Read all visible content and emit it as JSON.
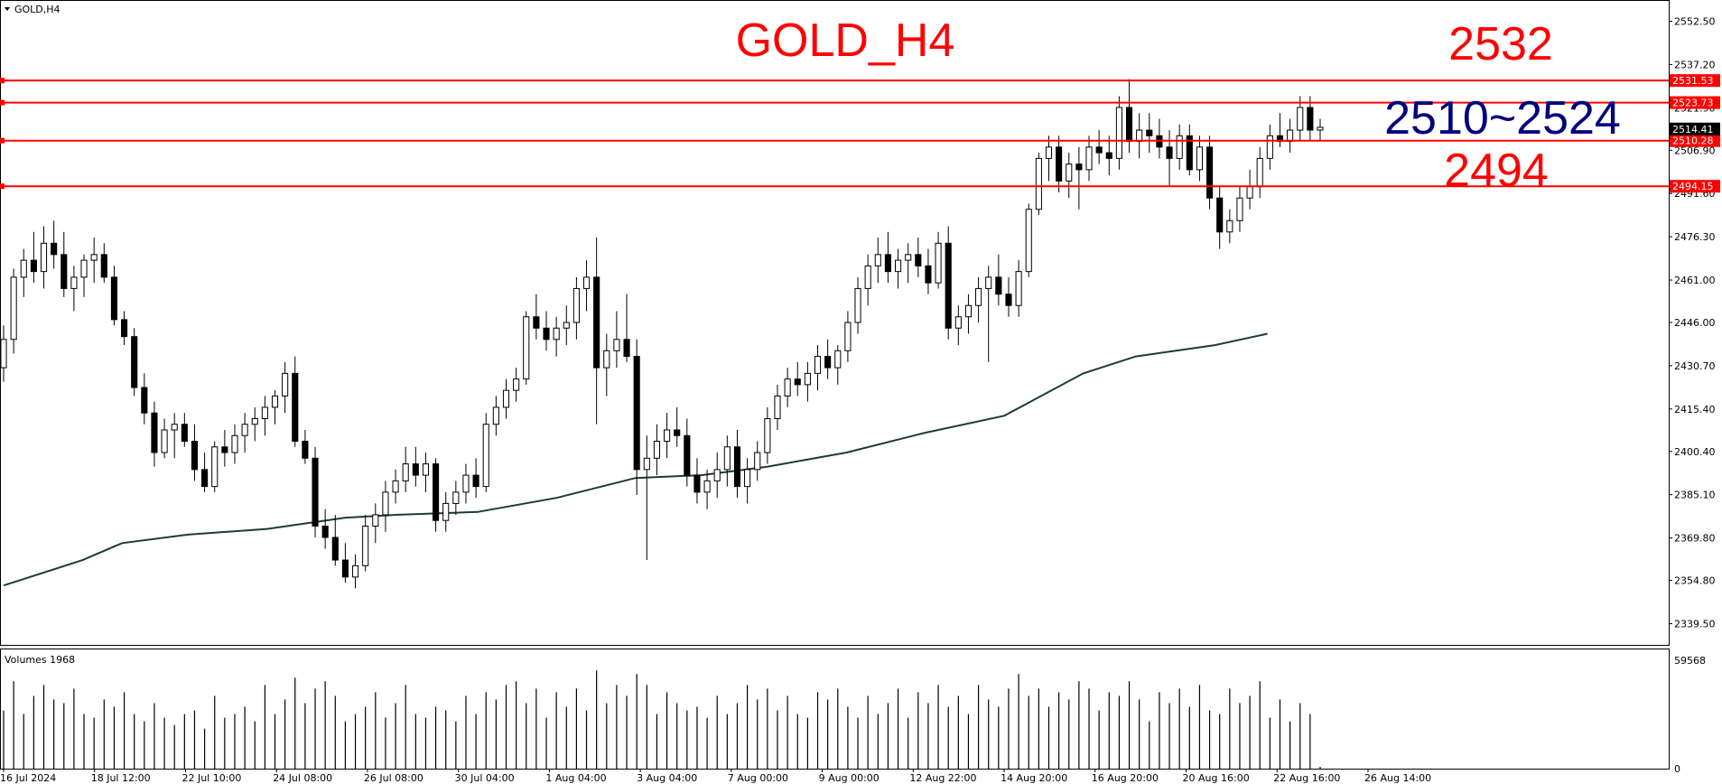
{
  "window": {
    "symbol_label": "GOLD,H4",
    "volumes_label": "Volumes 1968"
  },
  "annotations": {
    "title": "GOLD_H4",
    "level_2532": "2532",
    "range_label": "2510~2524",
    "level_2494": "2494"
  },
  "colors": {
    "level_line": "#ff0000",
    "ma_line": "#1e3a34",
    "candle": "#000000",
    "current_price_bg": "#000000"
  },
  "chart_data": {
    "type": "candlestick",
    "title": "GOLD_H4",
    "ylim": [
      2332,
      2560
    ],
    "y_ticks": [
      "2552.50",
      "2537.20",
      "2521.90",
      "2506.90",
      "2491.60",
      "2476.30",
      "2461.00",
      "2446.00",
      "2430.70",
      "2415.40",
      "2400.40",
      "2385.10",
      "2369.80",
      "2354.80",
      "2339.50"
    ],
    "x_ticks": [
      "16 Jul 2024",
      "18 Jul 12:00",
      "22 Jul 10:00",
      "24 Jul 08:00",
      "26 Jul 08:00",
      "30 Jul 04:00",
      "1 Aug 04:00",
      "3 Aug 04:00",
      "7 Aug 00:00",
      "9 Aug 00:00",
      "12 Aug 22:00",
      "14 Aug 20:00",
      "16 Aug 20:00",
      "20 Aug 16:00",
      "22 Aug 16:00",
      "26 Aug 14:00"
    ],
    "horizontal_levels": [
      {
        "value": 2531.53,
        "label": "2531.53"
      },
      {
        "value": 2523.73,
        "label": "2523.73"
      },
      {
        "value": 2510.28,
        "label": "2510.28"
      },
      {
        "value": 2494.15,
        "label": "2494.15"
      }
    ],
    "current_price": {
      "value": 2514.41,
      "label": "2514.41"
    },
    "candles": [
      [
        2430,
        2445,
        2425,
        2440
      ],
      [
        2440,
        2465,
        2435,
        2462
      ],
      [
        2462,
        2472,
        2455,
        2468
      ],
      [
        2468,
        2478,
        2460,
        2464
      ],
      [
        2464,
        2480,
        2458,
        2474
      ],
      [
        2474,
        2482,
        2465,
        2470
      ],
      [
        2470,
        2478,
        2455,
        2458
      ],
      [
        2458,
        2466,
        2450,
        2462
      ],
      [
        2462,
        2470,
        2455,
        2468
      ],
      [
        2468,
        2476,
        2460,
        2470
      ],
      [
        2470,
        2474,
        2460,
        2462
      ],
      [
        2462,
        2466,
        2445,
        2447
      ],
      [
        2447,
        2450,
        2438,
        2441
      ],
      [
        2441,
        2444,
        2420,
        2423
      ],
      [
        2423,
        2428,
        2410,
        2414
      ],
      [
        2414,
        2418,
        2395,
        2400
      ],
      [
        2400,
        2412,
        2398,
        2408
      ],
      [
        2408,
        2414,
        2398,
        2410
      ],
      [
        2410,
        2414,
        2402,
        2404
      ],
      [
        2404,
        2410,
        2390,
        2394
      ],
      [
        2394,
        2400,
        2386,
        2388
      ],
      [
        2388,
        2404,
        2386,
        2402
      ],
      [
        2402,
        2408,
        2395,
        2400
      ],
      [
        2400,
        2410,
        2396,
        2406
      ],
      [
        2406,
        2414,
        2400,
        2410
      ],
      [
        2410,
        2416,
        2404,
        2412
      ],
      [
        2412,
        2420,
        2406,
        2416
      ],
      [
        2416,
        2422,
        2410,
        2420
      ],
      [
        2420,
        2432,
        2414,
        2428
      ],
      [
        2428,
        2434,
        2402,
        2404
      ],
      [
        2404,
        2408,
        2396,
        2398
      ],
      [
        2398,
        2402,
        2370,
        2374
      ],
      [
        2374,
        2380,
        2366,
        2370
      ],
      [
        2370,
        2378,
        2360,
        2362
      ],
      [
        2362,
        2368,
        2354,
        2356
      ],
      [
        2356,
        2364,
        2352,
        2360
      ],
      [
        2360,
        2378,
        2358,
        2374
      ],
      [
        2374,
        2382,
        2368,
        2378
      ],
      [
        2378,
        2390,
        2372,
        2386
      ],
      [
        2386,
        2394,
        2382,
        2390
      ],
      [
        2390,
        2402,
        2386,
        2396
      ],
      [
        2396,
        2402,
        2388,
        2392
      ],
      [
        2392,
        2400,
        2386,
        2396
      ],
      [
        2396,
        2398,
        2372,
        2376
      ],
      [
        2376,
        2386,
        2372,
        2382
      ],
      [
        2382,
        2390,
        2378,
        2386
      ],
      [
        2386,
        2396,
        2382,
        2392
      ],
      [
        2392,
        2398,
        2384,
        2388
      ],
      [
        2388,
        2414,
        2386,
        2410
      ],
      [
        2410,
        2420,
        2406,
        2416
      ],
      [
        2416,
        2426,
        2412,
        2422
      ],
      [
        2422,
        2430,
        2418,
        2426
      ],
      [
        2426,
        2450,
        2424,
        2448
      ],
      [
        2448,
        2456,
        2440,
        2444
      ],
      [
        2444,
        2450,
        2436,
        2440
      ],
      [
        2440,
        2448,
        2434,
        2444
      ],
      [
        2444,
        2452,
        2438,
        2446
      ],
      [
        2446,
        2462,
        2440,
        2458
      ],
      [
        2458,
        2468,
        2450,
        2462
      ],
      [
        2462,
        2476,
        2410,
        2430
      ],
      [
        2430,
        2442,
        2420,
        2436
      ],
      [
        2436,
        2450,
        2430,
        2440
      ],
      [
        2440,
        2456,
        2432,
        2434
      ],
      [
        2434,
        2440,
        2385,
        2394
      ],
      [
        2394,
        2406,
        2362,
        2398
      ],
      [
        2398,
        2410,
        2392,
        2404
      ],
      [
        2404,
        2414,
        2398,
        2408
      ],
      [
        2408,
        2416,
        2402,
        2406
      ],
      [
        2406,
        2412,
        2388,
        2392
      ],
      [
        2392,
        2398,
        2382,
        2386
      ],
      [
        2386,
        2394,
        2380,
        2390
      ],
      [
        2390,
        2400,
        2384,
        2394
      ],
      [
        2394,
        2406,
        2388,
        2402
      ],
      [
        2402,
        2408,
        2384,
        2388
      ],
      [
        2388,
        2398,
        2382,
        2394
      ],
      [
        2394,
        2404,
        2390,
        2400
      ],
      [
        2400,
        2416,
        2396,
        2412
      ],
      [
        2412,
        2424,
        2408,
        2420
      ],
      [
        2420,
        2430,
        2416,
        2426
      ],
      [
        2426,
        2432,
        2420,
        2424
      ],
      [
        2424,
        2432,
        2418,
        2428
      ],
      [
        2428,
        2438,
        2422,
        2434
      ],
      [
        2434,
        2440,
        2426,
        2430
      ],
      [
        2430,
        2438,
        2424,
        2436
      ],
      [
        2436,
        2450,
        2432,
        2446
      ],
      [
        2446,
        2462,
        2442,
        2458
      ],
      [
        2458,
        2470,
        2452,
        2466
      ],
      [
        2466,
        2476,
        2460,
        2470
      ],
      [
        2470,
        2478,
        2460,
        2464
      ],
      [
        2464,
        2472,
        2458,
        2468
      ],
      [
        2468,
        2474,
        2460,
        2470
      ],
      [
        2470,
        2476,
        2462,
        2466
      ],
      [
        2466,
        2472,
        2456,
        2460
      ],
      [
        2460,
        2478,
        2458,
        2474
      ],
      [
        2474,
        2480,
        2440,
        2444
      ],
      [
        2444,
        2452,
        2438,
        2448
      ],
      [
        2448,
        2456,
        2442,
        2452
      ],
      [
        2452,
        2462,
        2446,
        2458
      ],
      [
        2458,
        2466,
        2432,
        2462
      ],
      [
        2462,
        2470,
        2452,
        2456
      ],
      [
        2456,
        2462,
        2448,
        2452
      ],
      [
        2452,
        2468,
        2448,
        2464
      ],
      [
        2464,
        2488,
        2462,
        2486
      ],
      [
        2486,
        2506,
        2484,
        2504
      ],
      [
        2504,
        2512,
        2496,
        2508
      ],
      [
        2508,
        2512,
        2492,
        2496
      ],
      [
        2496,
        2506,
        2490,
        2502
      ],
      [
        2502,
        2508,
        2486,
        2500
      ],
      [
        2500,
        2512,
        2496,
        2508
      ],
      [
        2508,
        2514,
        2502,
        2506
      ],
      [
        2506,
        2512,
        2498,
        2504
      ],
      [
        2504,
        2526,
        2500,
        2522
      ],
      [
        2522,
        2532,
        2506,
        2510
      ],
      [
        2510,
        2520,
        2504,
        2514
      ],
      [
        2514,
        2520,
        2506,
        2512
      ],
      [
        2512,
        2518,
        2504,
        2508
      ],
      [
        2508,
        2514,
        2494,
        2504
      ],
      [
        2504,
        2516,
        2500,
        2512
      ],
      [
        2512,
        2516,
        2498,
        2500
      ],
      [
        2500,
        2512,
        2496,
        2508
      ],
      [
        2508,
        2512,
        2486,
        2490
      ],
      [
        2490,
        2494,
        2472,
        2478
      ],
      [
        2478,
        2486,
        2474,
        2482
      ],
      [
        2482,
        2494,
        2478,
        2490
      ],
      [
        2490,
        2500,
        2486,
        2494
      ],
      [
        2494,
        2508,
        2490,
        2504
      ],
      [
        2504,
        2516,
        2500,
        2512
      ],
      [
        2512,
        2520,
        2508,
        2510
      ],
      [
        2510,
        2518,
        2506,
        2514
      ],
      [
        2514,
        2526,
        2510,
        2522
      ],
      [
        2522,
        2526,
        2510,
        2514
      ],
      [
        2514,
        2518,
        2510,
        2515
      ]
    ],
    "moving_average": [
      [
        0,
        2353
      ],
      [
        0.06,
        2362
      ],
      [
        0.09,
        2368
      ],
      [
        0.14,
        2371
      ],
      [
        0.2,
        2373
      ],
      [
        0.26,
        2377
      ],
      [
        0.3,
        2378
      ],
      [
        0.36,
        2379
      ],
      [
        0.42,
        2384
      ],
      [
        0.48,
        2391
      ],
      [
        0.53,
        2392
      ],
      [
        0.58,
        2395
      ],
      [
        0.64,
        2400
      ],
      [
        0.7,
        2407
      ],
      [
        0.76,
        2413
      ],
      [
        0.82,
        2428
      ],
      [
        0.86,
        2434
      ],
      [
        0.92,
        2438
      ],
      [
        0.96,
        2442
      ]
    ],
    "volume_ylim": [
      0,
      59568
    ],
    "volume_ticks": [
      "59568",
      "0"
    ],
    "volumes": [
      32000,
      48000,
      30000,
      40000,
      46000,
      38000,
      36000,
      44000,
      30000,
      28000,
      38000,
      34000,
      42000,
      30000,
      26000,
      36000,
      28000,
      24000,
      30000,
      32000,
      22000,
      40000,
      28000,
      30000,
      34000,
      26000,
      46000,
      30000,
      38000,
      50000,
      36000,
      44000,
      48000,
      40000,
      26000,
      30000,
      34000,
      42000,
      28000,
      36000,
      46000,
      30000,
      28000,
      34000,
      32000,
      26000,
      40000,
      30000,
      42000,
      38000,
      46000,
      48000,
      36000,
      44000,
      28000,
      42000,
      34000,
      44000,
      32000,
      54000,
      36000,
      46000,
      40000,
      52000,
      46000,
      30000,
      42000,
      36000,
      32000,
      34000,
      28000,
      40000,
      30000,
      36000,
      46000,
      38000,
      44000,
      32000,
      40000,
      30000,
      28000,
      42000,
      38000,
      44000,
      34000,
      28000,
      40000,
      30000,
      36000,
      44000,
      28000,
      42000,
      36000,
      46000,
      34000,
      40000,
      30000,
      46000,
      38000,
      34000,
      44000,
      52000,
      40000,
      44000,
      34000,
      42000,
      38000,
      48000,
      44000,
      32000,
      42000,
      40000,
      48000,
      38000,
      26000,
      42000,
      36000,
      44000,
      34000,
      46000,
      32000,
      30000,
      44000,
      36000,
      40000,
      48000,
      28000,
      38000,
      26000,
      36000,
      30000,
      1000
    ]
  }
}
